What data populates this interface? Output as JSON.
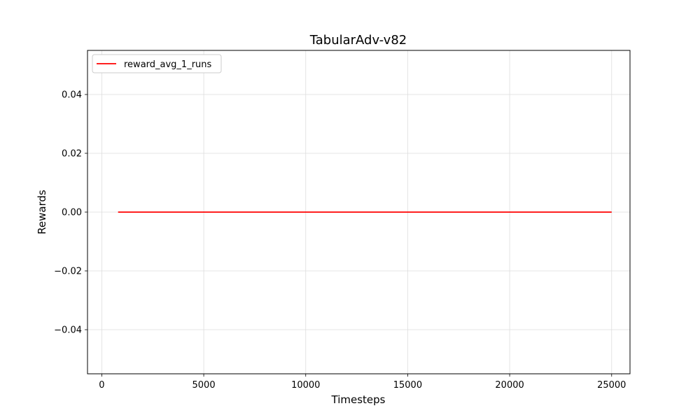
{
  "chart_data": {
    "type": "line",
    "title": "TabularAdv-v82",
    "xlabel": "Timesteps",
    "ylabel": "Rewards",
    "xlim": [
      -700,
      25900
    ],
    "ylim": [
      -0.055,
      0.055
    ],
    "xticks": [
      0,
      5000,
      10000,
      15000,
      20000,
      25000
    ],
    "xtick_labels": [
      "0",
      "5000",
      "10000",
      "15000",
      "20000",
      "25000"
    ],
    "yticks": [
      -0.04,
      -0.02,
      0.0,
      0.02,
      0.04
    ],
    "ytick_labels": [
      "−0.04",
      "−0.02",
      "0.00",
      "0.02",
      "0.04"
    ],
    "grid": true,
    "legend_position": "top-left",
    "series": [
      {
        "name": "reward_avg_1_runs",
        "color": "#ff0000",
        "x": [
          800,
          25000,
          24800
        ],
        "y": [
          0.0,
          0.0,
          0.0
        ]
      }
    ]
  }
}
